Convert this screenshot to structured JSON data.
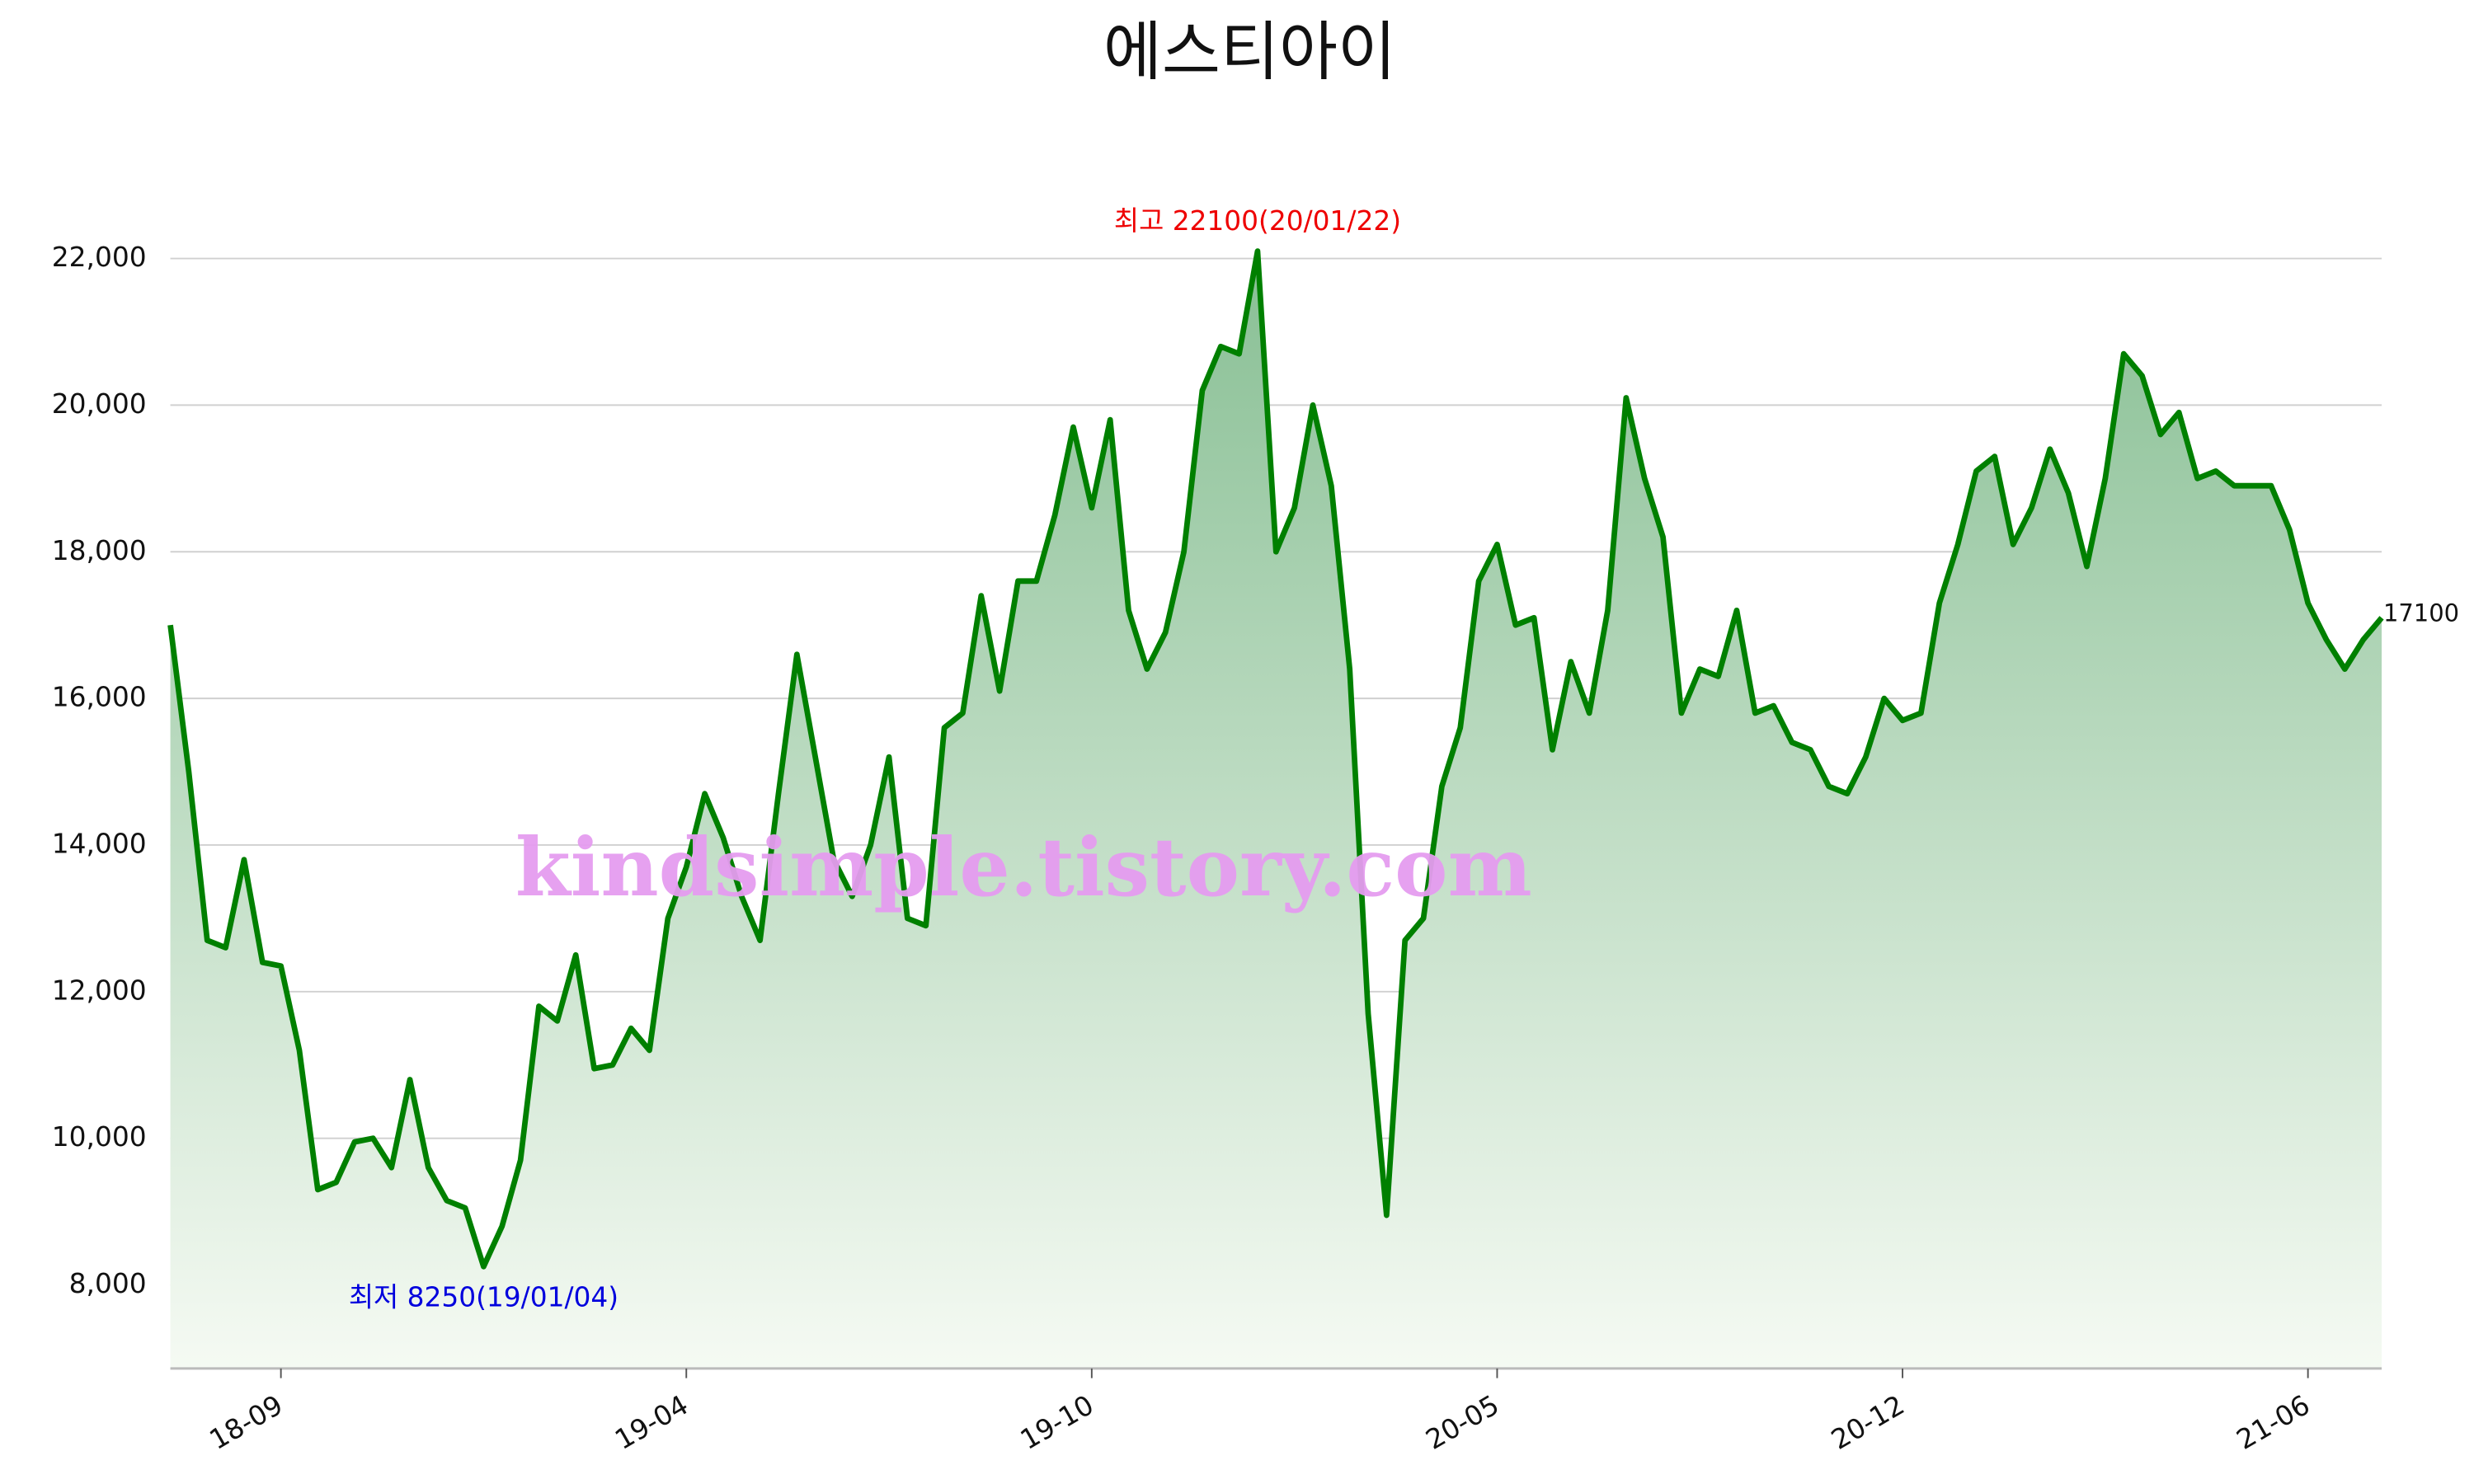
{
  "chart_data": {
    "type": "area-line",
    "title": "에스티아이",
    "watermark": "kindsimple.tistory.com",
    "annotations": [
      "최고 22100(20/01/22)",
      "최저 8250(19/01/04)"
    ],
    "annotation_colors": [
      "#ee0000",
      "#0000dd"
    ],
    "color": "#008000",
    "categories": [
      null,
      null,
      null,
      null,
      null,
      null,
      "18-09",
      null,
      null,
      null,
      null,
      null,
      null,
      null,
      null,
      null,
      null,
      null,
      null,
      null,
      null,
      null,
      null,
      null,
      null,
      null,
      null,
      null,
      "19-04",
      null,
      null,
      null,
      null,
      null,
      null,
      null,
      null,
      null,
      null,
      null,
      null,
      null,
      null,
      null,
      null,
      null,
      null,
      null,
      null,
      null,
      "19-10",
      null,
      null,
      null,
      null,
      null,
      null,
      null,
      null,
      null,
      null,
      null,
      null,
      null,
      null,
      null,
      null,
      null,
      null,
      null,
      null,
      null,
      "20-05",
      null,
      null,
      null,
      null,
      null,
      null,
      null,
      null,
      null,
      null,
      null,
      null,
      null,
      null,
      null,
      null,
      null,
      null,
      null,
      null,
      null,
      "20-12",
      null,
      null,
      null,
      null,
      null,
      null,
      null,
      null,
      null,
      null,
      null,
      null,
      null,
      null,
      null,
      null,
      null,
      null,
      null,
      null,
      null,
      "21-06",
      null,
      null,
      null,
      null
    ],
    "values": [
      17000,
      15000,
      12700,
      12600,
      13800,
      12400,
      12350,
      11200,
      9300,
      9400,
      9950,
      10000,
      9600,
      10800,
      9600,
      9150,
      9050,
      8250,
      8800,
      9700,
      11800,
      11600,
      12500,
      10950,
      11000,
      11500,
      11200,
      13000,
      13700,
      14700,
      14100,
      13300,
      12700,
      14700,
      16600,
      15200,
      13800,
      13300,
      14000,
      15200,
      13000,
      12900,
      15600,
      15800,
      17400,
      16100,
      17600,
      17600,
      18500,
      19700,
      18600,
      19800,
      17200,
      16400,
      16900,
      18000,
      20200,
      20800,
      20700,
      22100,
      18000,
      18600,
      20000,
      18900,
      16400,
      11700,
      8950,
      12700,
      13000,
      14800,
      15600,
      17600,
      18100,
      17000,
      17100,
      15300,
      16500,
      15800,
      17200,
      20100,
      19000,
      18200,
      15800,
      16400,
      16300,
      17200,
      15800,
      15900,
      15400,
      15300,
      14800,
      14700,
      15200,
      16000,
      15700,
      15800,
      17300,
      18100,
      19100,
      19300,
      18100,
      18600,
      19400,
      18800,
      17800,
      19000,
      20700,
      20400,
      19600,
      19900,
      19000,
      19100,
      18900,
      18900,
      18900,
      18300,
      17300,
      16800,
      16400,
      16800,
      17100
    ],
    "ylim": [
      6860,
      22900
    ],
    "yticks": [
      {
        "value": 8000,
        "label": "8,000"
      },
      {
        "value": 10000,
        "label": "10,000"
      },
      {
        "value": 12000,
        "label": "12,000"
      },
      {
        "value": 14000,
        "label": "14,000"
      },
      {
        "value": 16000,
        "label": "16,000"
      },
      {
        "value": 18000,
        "label": "18,000"
      },
      {
        "value": 20000,
        "label": "20,000"
      },
      {
        "value": 22000,
        "label": "22,000"
      }
    ],
    "grid": true
  }
}
